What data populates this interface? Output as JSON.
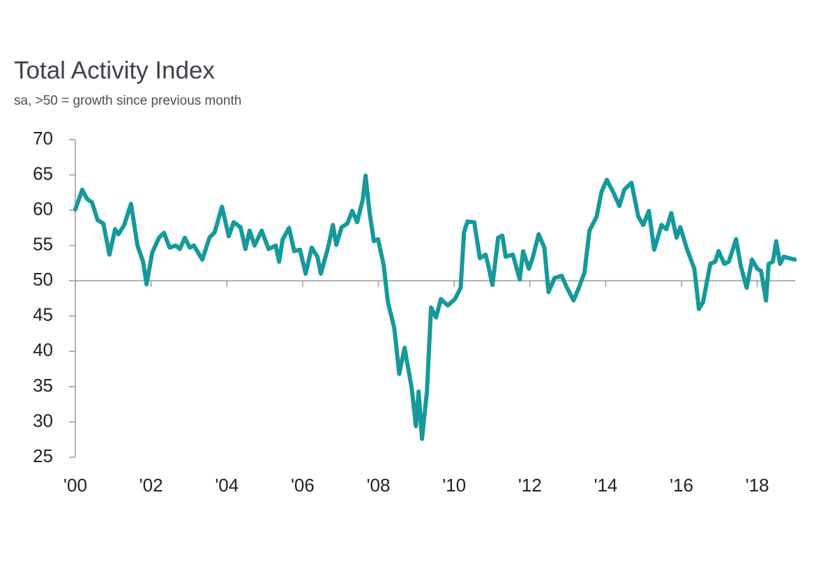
{
  "chart_data": {
    "type": "line",
    "title": "Total Activity Index",
    "subtitle": "sa, >50 = growth since previous month",
    "xlim": [
      2000,
      2019
    ],
    "xticks": [
      {
        "value": 2000,
        "label": "'00"
      },
      {
        "value": 2002,
        "label": "'02"
      },
      {
        "value": 2004,
        "label": "'04"
      },
      {
        "value": 2006,
        "label": "'06"
      },
      {
        "value": 2008,
        "label": "'08"
      },
      {
        "value": 2010,
        "label": "'10"
      },
      {
        "value": 2012,
        "label": "'12"
      },
      {
        "value": 2014,
        "label": "'14"
      },
      {
        "value": 2016,
        "label": "'16"
      },
      {
        "value": 2018,
        "label": "'18"
      }
    ],
    "ylim": [
      25,
      70
    ],
    "yticks": [
      25,
      30,
      35,
      40,
      45,
      50,
      55,
      60,
      65,
      70
    ],
    "reference_line": 50,
    "color": "#15999a",
    "x": [
      2000.0,
      2000.18,
      2000.31,
      2000.44,
      2000.59,
      2000.74,
      2000.9,
      2001.05,
      2001.14,
      2001.29,
      2001.47,
      2001.64,
      2001.79,
      2001.88,
      2002.03,
      2002.21,
      2002.34,
      2002.49,
      2002.65,
      2002.76,
      2002.89,
      2003.02,
      2003.13,
      2003.35,
      2003.54,
      2003.68,
      2003.87,
      2004.05,
      2004.18,
      2004.36,
      2004.49,
      2004.6,
      2004.73,
      2004.92,
      2005.1,
      2005.29,
      2005.38,
      2005.47,
      2005.64,
      2005.78,
      2005.93,
      2006.08,
      2006.24,
      2006.39,
      2006.48,
      2006.67,
      2006.8,
      2006.89,
      2007.03,
      2007.18,
      2007.31,
      2007.44,
      2007.59,
      2007.66,
      2007.77,
      2007.88,
      2007.99,
      2008.14,
      2008.25,
      2008.42,
      2008.55,
      2008.69,
      2008.88,
      2008.99,
      2009.06,
      2009.15,
      2009.28,
      2009.39,
      2009.52,
      2009.65,
      2009.83,
      2010.02,
      2010.17,
      2010.26,
      2010.35,
      2010.53,
      2010.68,
      2010.83,
      2010.9,
      2011.01,
      2011.16,
      2011.27,
      2011.36,
      2011.55,
      2011.73,
      2011.82,
      2011.97,
      2012.08,
      2012.23,
      2012.38,
      2012.49,
      2012.65,
      2012.84,
      2012.96,
      2013.15,
      2013.29,
      2013.44,
      2013.57,
      2013.76,
      2013.89,
      2014.03,
      2014.22,
      2014.36,
      2014.49,
      2014.68,
      2014.86,
      2014.99,
      2015.14,
      2015.28,
      2015.47,
      2015.6,
      2015.73,
      2015.87,
      2015.97,
      2016.15,
      2016.34,
      2016.46,
      2016.57,
      2016.76,
      2016.89,
      2016.98,
      2017.13,
      2017.25,
      2017.44,
      2017.57,
      2017.72,
      2017.86,
      2018.0,
      2018.1,
      2018.23,
      2018.3,
      2018.41,
      2018.5,
      2018.6,
      2018.7,
      2018.99
    ],
    "values": [
      60.1,
      62.9,
      61.6,
      61.1,
      58.6,
      58.1,
      53.7,
      57.3,
      56.6,
      57.9,
      60.9,
      55,
      52.7,
      49.5,
      54,
      56.1,
      56.8,
      54.7,
      55,
      54.5,
      56.1,
      54.7,
      55,
      53,
      56.1,
      56.9,
      60.5,
      56.3,
      58.3,
      57.6,
      54.5,
      57.1,
      55,
      57.1,
      54.5,
      55,
      52.7,
      55.8,
      57.5,
      54.2,
      54.4,
      51,
      54.7,
      53.4,
      51,
      54.7,
      57.9,
      55.1,
      57.6,
      58.1,
      59.9,
      58.3,
      61.6,
      64.9,
      59.6,
      55.6,
      55.9,
      52.2,
      47,
      43.3,
      36.8,
      40.5,
      34.8,
      29.4,
      34.3,
      27.6,
      34.3,
      46.2,
      44.8,
      47.4,
      46.5,
      47.4,
      49,
      56.9,
      58.4,
      58.3,
      53.2,
      53.7,
      52.2,
      49.4,
      56.1,
      56.4,
      53.4,
      53.7,
      50.2,
      54.2,
      51.7,
      53.4,
      56.6,
      54.7,
      48.4,
      50.4,
      50.7,
      49.2,
      47.2,
      49,
      51.2,
      57.1,
      59.1,
      62.6,
      64.3,
      62.3,
      60.6,
      62.9,
      63.9,
      59.1,
      57.9,
      59.9,
      54.4,
      57.9,
      57.3,
      59.6,
      56.1,
      57.6,
      54.4,
      51.7,
      46,
      47,
      52.4,
      52.7,
      54.2,
      52.4,
      52.7,
      55.9,
      52,
      49,
      53,
      51.7,
      51.4,
      47.2,
      52.4,
      52.7,
      55.6,
      52.4,
      53.4,
      53
    ]
  }
}
